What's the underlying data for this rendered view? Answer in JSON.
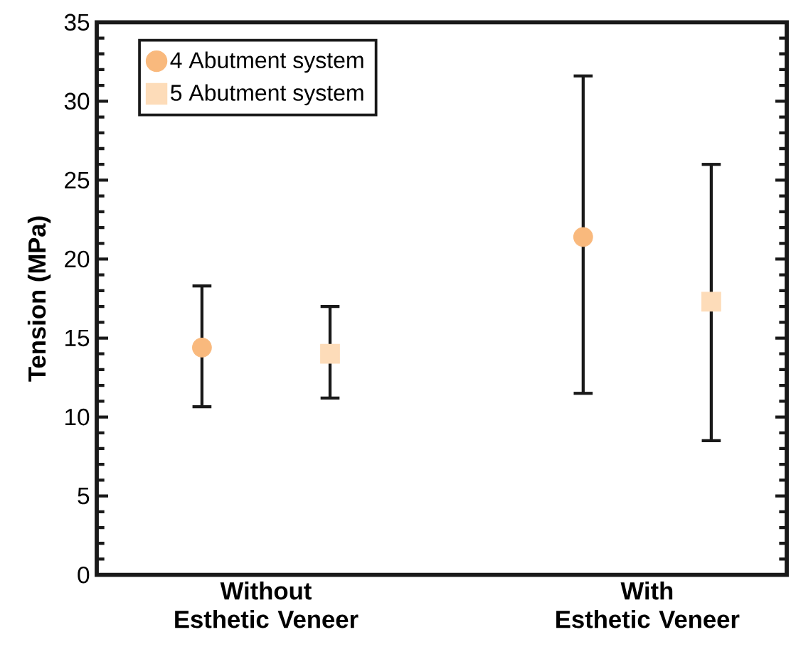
{
  "chart_data": {
    "type": "scatter",
    "ylabel": "Tension (MPa)",
    "categories": [
      "Without Esthetic Veneer",
      "With Esthetic Veneer"
    ],
    "series": [
      {
        "name": "4 Abutment system",
        "color": "#f9b97d",
        "marker": "circle",
        "values": [
          14.4,
          21.4
        ],
        "errors": [
          [
            10.65,
            18.3
          ],
          [
            11.5,
            31.6
          ]
        ]
      },
      {
        "name": "5 Abutment system",
        "color": "#fddcb9",
        "marker": "square",
        "values": [
          14.0,
          17.3
        ],
        "errors": [
          [
            11.2,
            17.0
          ],
          [
            8.5,
            26.0
          ]
        ]
      }
    ],
    "ylim": [
      0,
      35
    ],
    "yticks": [
      0,
      5,
      10,
      15,
      20,
      25,
      30,
      35
    ],
    "grid": false,
    "legend": "top left"
  }
}
